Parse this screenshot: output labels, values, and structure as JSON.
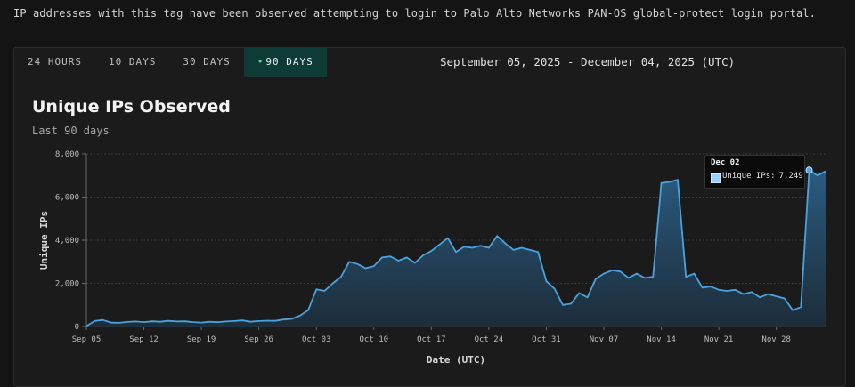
{
  "description": "IP addresses with this tag have been observed attempting to login to Palo Alto Networks PAN-OS global-protect login portal.",
  "tabs": [
    {
      "label": "24 HOURS",
      "active": false
    },
    {
      "label": "10 DAYS",
      "active": false
    },
    {
      "label": "30 DAYS",
      "active": false
    },
    {
      "label": "90 DAYS",
      "active": true,
      "marker": "•"
    }
  ],
  "date_range": "September 05, 2025 - December 04, 2025 (UTC)",
  "tooltip": {
    "date": "Dec 02",
    "series_label": "Unique IPs:",
    "value": "7,249"
  },
  "colors": {
    "line": "#4aa3df",
    "area_top": "#2b5f86",
    "active_tab": "#0f3b36",
    "background": "#141414"
  },
  "chart_data": {
    "type": "area",
    "title": "Unique IPs Observed",
    "subtitle": "Last 90 days",
    "xlabel": "Date (UTC)",
    "ylabel": "Unique IPs",
    "ylim": [
      0,
      8000
    ],
    "yticks": [
      "0",
      "2,000",
      "4,000",
      "6,000",
      "8,000"
    ],
    "ytick_values": [
      0,
      2000,
      4000,
      6000,
      8000
    ],
    "xticks": [
      "Sep 05",
      "Sep 12",
      "Sep 19",
      "Sep 26",
      "Oct 03",
      "Oct 10",
      "Oct 17",
      "Oct 24",
      "Oct 31",
      "Nov 07",
      "Nov 14",
      "Nov 21",
      "Nov 28"
    ],
    "grid": true,
    "legend": "none",
    "series": [
      {
        "values": [
          20,
          250,
          300,
          180,
          170,
          210,
          230,
          200,
          240,
          220,
          260,
          230,
          240,
          200,
          180,
          220,
          200,
          230,
          250,
          280,
          220,
          250,
          270,
          260,
          320,
          350,
          500,
          750,
          1720,
          1650,
          2000,
          2300,
          3000,
          2900,
          2700,
          2800,
          3200,
          3250,
          3050,
          3200,
          2950,
          3300,
          3500,
          3800,
          4100,
          3450,
          3700,
          3650,
          3750,
          3650,
          4200,
          3850,
          3550,
          3650,
          3550,
          3450,
          2100,
          1750,
          1000,
          1050,
          1550,
          1350,
          2200,
          2450,
          2600,
          2550,
          2250,
          2450,
          2250,
          2300,
          6650,
          6700,
          6800,
          2300,
          2450,
          1800,
          1850,
          1700,
          1650,
          1700,
          1500,
          1600,
          1350,
          1500,
          1400,
          1300,
          750,
          900,
          7249,
          7000,
          7200
        ]
      }
    ]
  }
}
